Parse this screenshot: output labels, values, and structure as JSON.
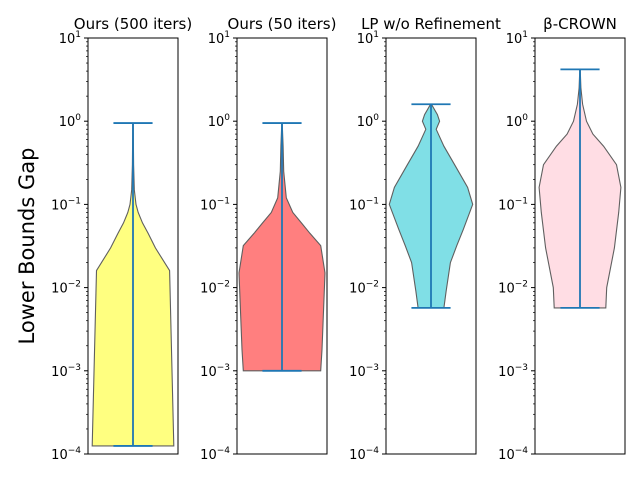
{
  "figure": {
    "ylabel": "Lower Bounds Gap"
  },
  "chart_data": [
    {
      "type": "violin",
      "title": "Ours (500 iters)",
      "yscale": "log",
      "ylim": [
        0.0001,
        10
      ],
      "yticks": [
        "10^{1}",
        "10^{0}",
        "10^{-1}",
        "10^{-2}",
        "10^{-3}",
        "10^{-4}"
      ],
      "fill_color": "#ffff80",
      "min": 0.000125,
      "max": 0.95,
      "profile": [
        {
          "y": 0.000125,
          "w": 0.95
        },
        {
          "y": 0.016,
          "w": 0.85
        },
        {
          "y": 0.03,
          "w": 0.52
        },
        {
          "y": 0.045,
          "w": 0.35
        },
        {
          "y": 0.06,
          "w": 0.22
        },
        {
          "y": 0.08,
          "w": 0.12
        },
        {
          "y": 0.1,
          "w": 0.07
        },
        {
          "y": 0.15,
          "w": 0.03
        },
        {
          "y": 0.3,
          "w": 0.015
        },
        {
          "y": 0.95,
          "w": 0.005
        }
      ]
    },
    {
      "type": "violin",
      "title": "Ours (50 iters)",
      "yscale": "log",
      "ylim": [
        0.0001,
        10
      ],
      "yticks": [
        "10^{1}",
        "10^{0}",
        "10^{-1}",
        "10^{-2}",
        "10^{-3}",
        "10^{-4}"
      ],
      "fill_color": "#ff7f7f",
      "min": 0.001,
      "max": 0.95,
      "profile": [
        {
          "y": 0.001,
          "w": 0.9
        },
        {
          "y": 0.0018,
          "w": 0.93
        },
        {
          "y": 0.015,
          "w": 1.0
        },
        {
          "y": 0.032,
          "w": 0.9
        },
        {
          "y": 0.045,
          "w": 0.65
        },
        {
          "y": 0.06,
          "w": 0.45
        },
        {
          "y": 0.08,
          "w": 0.25
        },
        {
          "y": 0.12,
          "w": 0.1
        },
        {
          "y": 0.25,
          "w": 0.04
        },
        {
          "y": 0.5,
          "w": 0.025
        },
        {
          "y": 0.95,
          "w": 0.005
        }
      ]
    },
    {
      "type": "violin",
      "title": "LP w/o Refinement",
      "yscale": "log",
      "ylim": [
        0.0001,
        10
      ],
      "yticks": [
        "10^{1}",
        "10^{0}",
        "10^{-1}",
        "10^{-2}",
        "10^{-3}",
        "10^{-4}"
      ],
      "fill_color": "#80dfe6",
      "min": 0.0057,
      "max": 1.6,
      "profile": [
        {
          "y": 0.0057,
          "w": 0.3
        },
        {
          "y": 0.009,
          "w": 0.35
        },
        {
          "y": 0.02,
          "w": 0.45
        },
        {
          "y": 0.032,
          "w": 0.6
        },
        {
          "y": 0.05,
          "w": 0.75
        },
        {
          "y": 0.1,
          "w": 0.97
        },
        {
          "y": 0.16,
          "w": 0.85
        },
        {
          "y": 0.3,
          "w": 0.55
        },
        {
          "y": 0.5,
          "w": 0.3
        },
        {
          "y": 0.65,
          "w": 0.2
        },
        {
          "y": 0.8,
          "w": 0.12
        },
        {
          "y": 1.0,
          "w": 0.2
        },
        {
          "y": 1.2,
          "w": 0.15
        },
        {
          "y": 1.6,
          "w": 0.01
        }
      ]
    },
    {
      "type": "violin",
      "title": "β-CROWN",
      "yscale": "log",
      "ylim": [
        0.0001,
        10
      ],
      "yticks": [
        "10^{1}",
        "10^{0}",
        "10^{-1}",
        "10^{-2}",
        "10^{-3}",
        "10^{-4}"
      ],
      "fill_color": "#ffdde4",
      "min": 0.0057,
      "max": 4.2,
      "profile": [
        {
          "y": 0.0057,
          "w": 0.6
        },
        {
          "y": 0.01,
          "w": 0.62
        },
        {
          "y": 0.03,
          "w": 0.8
        },
        {
          "y": 0.08,
          "w": 0.9
        },
        {
          "y": 0.16,
          "w": 0.95
        },
        {
          "y": 0.3,
          "w": 0.85
        },
        {
          "y": 0.5,
          "w": 0.55
        },
        {
          "y": 0.7,
          "w": 0.3
        },
        {
          "y": 1.0,
          "w": 0.15
        },
        {
          "y": 1.6,
          "w": 0.06
        },
        {
          "y": 2.5,
          "w": 0.02
        },
        {
          "y": 4.2,
          "w": 0.005
        }
      ]
    }
  ]
}
